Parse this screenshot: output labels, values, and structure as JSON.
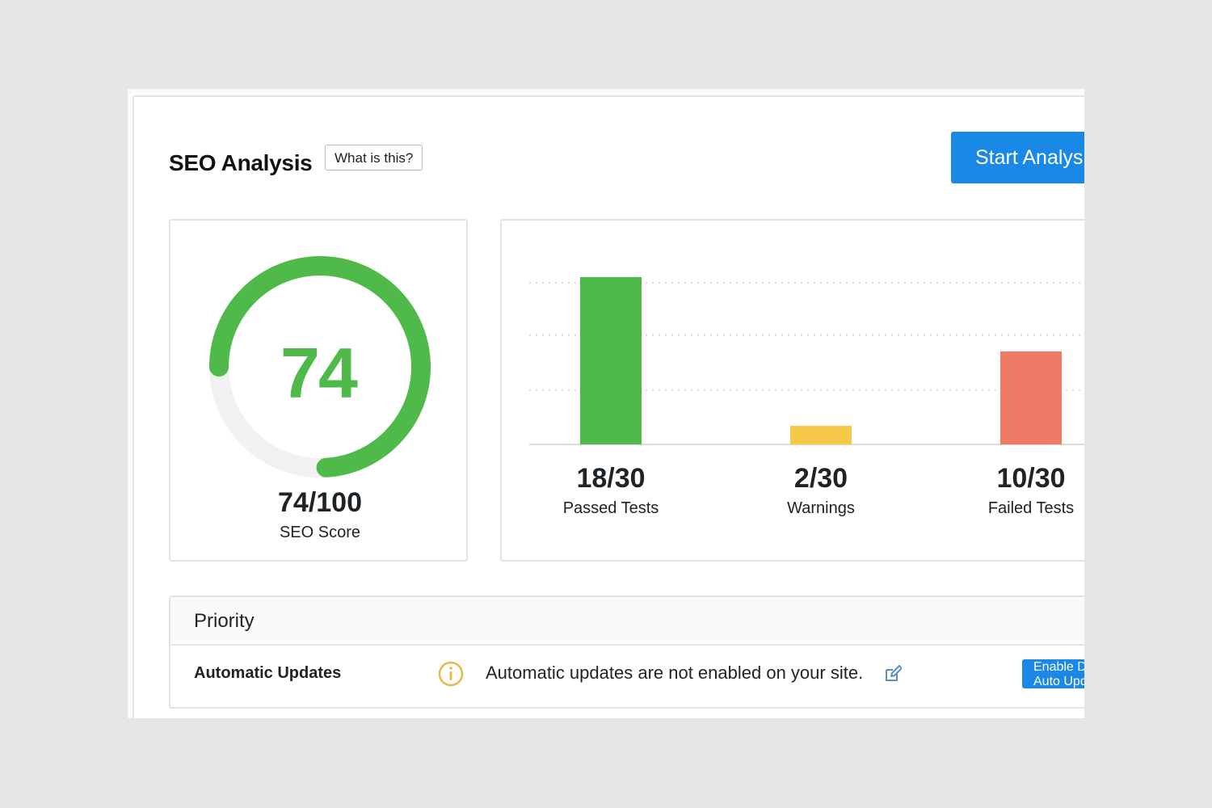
{
  "header": {
    "title": "SEO Analysis",
    "help_label": "What is this?",
    "start_label": "Start Analysis"
  },
  "score": {
    "value": "74",
    "fraction": "74/100",
    "label": "SEO Score",
    "percent": 74,
    "color": "#4fba4a",
    "track_color": "#f1f1f1"
  },
  "tests": {
    "total": 30,
    "items": [
      {
        "value": 18,
        "display": "18/30",
        "label": "Passed Tests",
        "color": "#4fba4a"
      },
      {
        "value": 2,
        "display": "2/30",
        "label": "Warnings",
        "color": "#f7c948"
      },
      {
        "value": 10,
        "display": "10/30",
        "label": "Failed Tests",
        "color": "#ef7a65"
      }
    ]
  },
  "priority": {
    "title": "Priority",
    "items": [
      {
        "name": "Automatic Updates",
        "icon": "info-icon",
        "message": "Automatic updates are not enabled on your site.",
        "action_label": "Enable Default Auto Updates"
      }
    ]
  }
}
